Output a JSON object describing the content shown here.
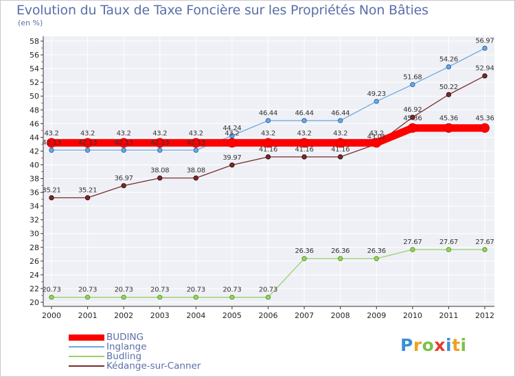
{
  "title": "Evolution du Taux de Taxe Foncière sur les Propriétés Non Bâties",
  "unit_label": "(en %)",
  "logo": {
    "text": "Proxiti",
    "letter_colors": [
      "#3a8fd6",
      "#f0a020",
      "#7cc04a",
      "#e23a2e",
      "#3a8fd6",
      "#f0a020",
      "#7cc04a"
    ]
  },
  "chart_data": {
    "type": "line",
    "categories": [
      "2000",
      "2001",
      "2002",
      "2003",
      "2004",
      "2005",
      "2006",
      "2007",
      "2008",
      "2009",
      "2010",
      "2011",
      "2012"
    ],
    "ylim": [
      20,
      58
    ],
    "yticks": [
      20,
      22,
      24,
      26,
      28,
      30,
      32,
      34,
      36,
      38,
      40,
      42,
      44,
      46,
      48,
      50,
      52,
      54,
      56,
      58
    ],
    "grid": true,
    "legend_position": "bottom-left",
    "series": [
      {
        "name": "BUDING",
        "color": "#ff0000",
        "values": [
          43.2,
          43.2,
          43.2,
          43.2,
          43.2,
          43.2,
          43.2,
          43.2,
          43.2,
          43.2,
          45.36,
          45.36,
          45.36
        ],
        "labels": [
          "43.2",
          "43.2",
          "43.2",
          "43.2",
          "43.2",
          "43.2",
          "43.2",
          "43.2",
          "43.2",
          "43.2",
          "45.36",
          "45.36",
          "45.36"
        ]
      },
      {
        "name": "Inglange",
        "color": "#6fa8dc",
        "values": [
          42.13,
          42.13,
          42.13,
          42.13,
          42.13,
          44.24,
          46.44,
          46.44,
          46.44,
          49.23,
          51.68,
          54.26,
          56.97
        ],
        "labels": [
          "42.13",
          "42.13",
          "42.13",
          "42.13",
          "42.13",
          "44.24",
          "46.44",
          "46.44",
          "46.44",
          "49.23",
          "51.68",
          "54.26",
          "56.97"
        ]
      },
      {
        "name": "Budling",
        "color": "#99d066",
        "values": [
          20.73,
          20.73,
          20.73,
          20.73,
          20.73,
          20.73,
          20.73,
          26.36,
          26.36,
          26.36,
          27.67,
          27.67,
          27.67
        ],
        "labels": [
          "20.73",
          "20.73",
          "20.73",
          "20.73",
          "20.73",
          "20.73",
          "20.73",
          "26.36",
          "26.36",
          "26.36",
          "27.67",
          "27.67",
          "27.67"
        ]
      },
      {
        "name": "Kédange-sur-Canner",
        "color": "#7a2a2a",
        "values": [
          35.21,
          35.21,
          36.97,
          38.08,
          38.08,
          39.97,
          41.16,
          41.16,
          41.16,
          43.01,
          46.92,
          50.22,
          52.94
        ],
        "labels": [
          "35.21",
          "35.21",
          "36.97",
          "38.08",
          "38.08",
          "39.97",
          "41.16",
          "41.16",
          "41.16",
          "43.01",
          "46.92",
          "50.22",
          "52.94"
        ]
      }
    ]
  }
}
